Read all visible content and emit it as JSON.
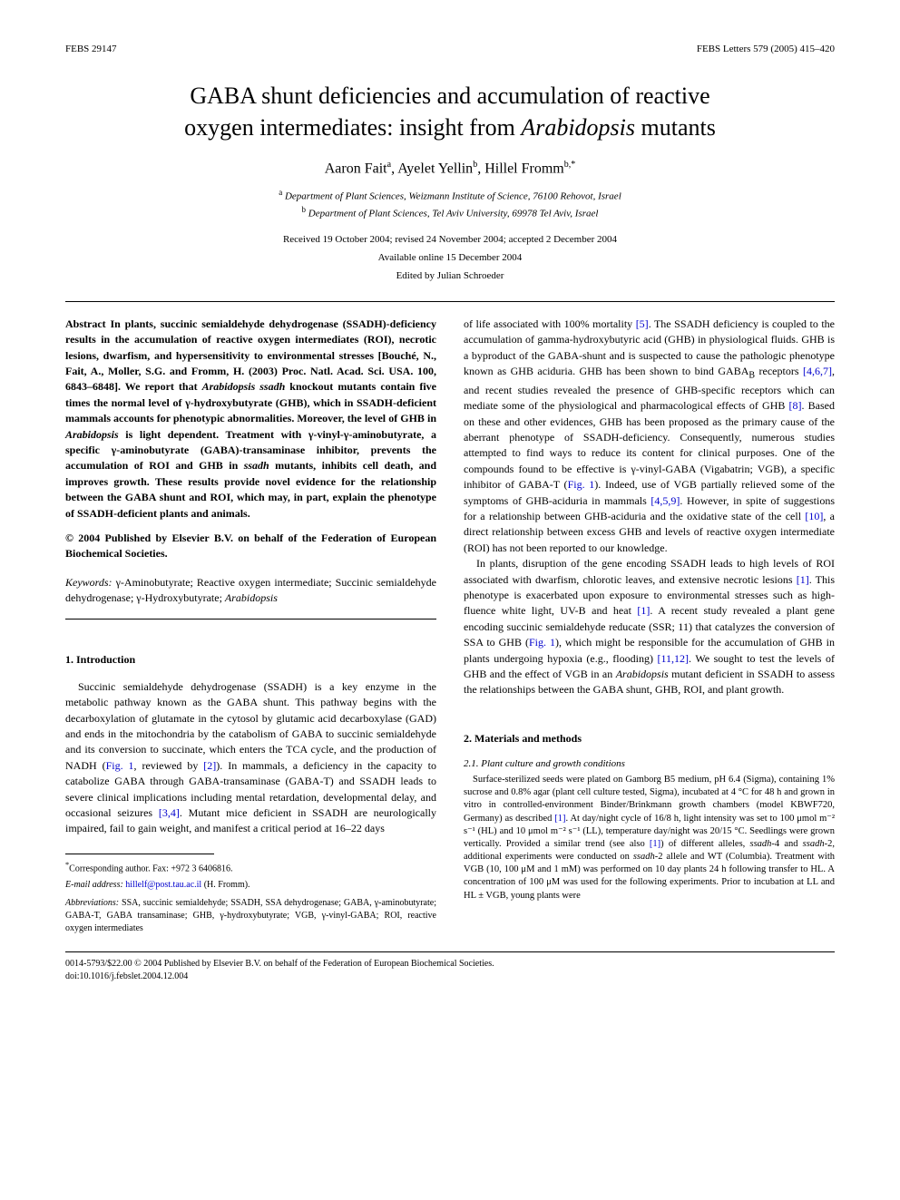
{
  "header": {
    "left": "FEBS 29147",
    "right": "FEBS Letters 579 (2005) 415–420"
  },
  "title_line1": "GABA shunt deficiencies and accumulation of reactive",
  "title_line2_a": "oxygen intermediates: insight from ",
  "title_line2_em": "Arabidopsis",
  "title_line2_b": " mutants",
  "authors": {
    "a1_name": "Aaron Fait",
    "a1_sup": "a",
    "a2_name": "Ayelet Yellin",
    "a2_sup": "b",
    "a3_name": "Hillel Fromm",
    "a3_sup": "b,*"
  },
  "affiliations": {
    "a_sup": "a",
    "a_text": " Department of Plant Sciences, Weizmann Institute of Science, 76100 Rehovot, Israel",
    "b_sup": "b",
    "b_text": " Department of Plant Sciences, Tel Aviv University, 69978 Tel Aviv, Israel"
  },
  "dates": "Received 19 October 2004; revised 24 November 2004; accepted 2 December 2004",
  "online": "Available online 15 December 2004",
  "editor": "Edited by Julian Schroeder",
  "abstract_label": "Abstract",
  "abstract_body": " In plants, succinic semialdehyde dehydrogenase (SSADH)-deficiency results in the accumulation of reactive oxygen intermediates (ROI), necrotic lesions, dwarfism, and hypersensitivity to environmental stresses [Bouché, N., Fait, A., Moller, S.G. and Fromm, H. (2003) Proc. Natl. Acad. Sci. USA. 100, 6843–6848]. We report that ",
  "abstract_em1": "Arabidopsis ssadh",
  "abstract_body2": " knockout mutants contain five times the normal level of γ-hydroxybutyrate (GHB), which in SSADH-deficient mammals accounts for phenotypic abnormalities. Moreover, the level of GHB in ",
  "abstract_em2": "Arabidopsis",
  "abstract_body3": " is light dependent. Treatment with γ-vinyl-γ-aminobutyrate, a specific γ-aminobutyrate (GABA)-transaminase inhibitor, prevents the accumulation of ROI and GHB in ",
  "abstract_em3": "ssadh",
  "abstract_body4": " mutants, inhibits cell death, and improves growth. These results provide novel evidence for the relationship between the GABA shunt and ROI, which may, in part, explain the phenotype of SSADH-deficient plants and animals.",
  "copyright": "© 2004 Published by Elsevier B.V. on behalf of the Federation of European Biochemical Societies.",
  "keywords_label": "Keywords:",
  "keywords_text_1": " γ-Aminobutyrate; Reactive oxygen intermediate; Succinic semialdehyde dehydrogenase; γ-Hydroxybutyrate; ",
  "keywords_em": "Arabidopsis",
  "section1_title": "1. Introduction",
  "intro_p1a": "Succinic semialdehyde dehydrogenase (SSADH) is a key enzyme in the metabolic pathway known as the GABA shunt. This pathway begins with the decarboxylation of glutamate in the cytosol by glutamic acid decarboxylase (GAD) and ends in the mitochondria by the catabolism of GABA to succinic semialdehyde and its conversion to succinate, which enters the TCA cycle, and the production of NADH (",
  "intro_p1_fig": "Fig. 1",
  "intro_p1b": ", reviewed by ",
  "intro_p1_ref2": "[2]",
  "intro_p1c": "). In mammals, a deficiency in the capacity to catabolize GABA through GABA-transaminase (GABA-T) and SSADH leads to severe clinical implications including mental retardation, developmental delay, and occasional seizures ",
  "intro_p1_ref34": "[3,4]",
  "intro_p1d": ". Mutant mice deficient in SSADH are neurologically impaired, fail to gain weight, and manifest a critical period at 16–22 days",
  "intro_p1e": "of life associated with 100% mortality ",
  "intro_p1_ref5": "[5]",
  "intro_p1f": ". The SSADH deficiency is coupled to the accumulation of gamma-hydroxybutyric acid (GHB) in physiological fluids. GHB is a byproduct of the GABA-shunt and is suspected to cause the pathologic phenotype known as GHB aciduria. GHB has been shown to bind GABA",
  "intro_p1_sub": "B",
  "intro_p1g": " receptors ",
  "intro_p1_ref467": "[4,6,7]",
  "intro_p1h": ", and recent studies revealed the presence of GHB-specific receptors which can mediate some of the physiological and pharmacological effects of GHB ",
  "intro_p1_ref8": "[8]",
  "intro_p1i": ". Based on these and other evidences, GHB has been proposed as the primary cause of the aberrant phenotype of SSADH-deficiency. Consequently, numerous studies attempted to find ways to reduce its content for clinical purposes. One of the compounds found to be effective is γ-vinyl-GABA (Vigabatrin; VGB), a specific inhibitor of GABA-T (",
  "intro_p1_fig1b": "Fig. 1",
  "intro_p1j": "). Indeed, use of VGB partially relieved some of the symptoms of GHB-aciduria in mammals ",
  "intro_p1_ref459": "[4,5,9]",
  "intro_p1k": ". However, in spite of suggestions for a relationship between GHB-aciduria and the oxidative state of the cell ",
  "intro_p1_ref10": "[10]",
  "intro_p1l": ", a direct relationship between excess GHB and levels of reactive oxygen intermediate (ROI) has not been reported to our knowledge.",
  "intro_p2a": "In plants, disruption of the gene encoding SSADH leads to high levels of ROI associated with dwarfism, chlorotic leaves, and extensive necrotic lesions ",
  "intro_p2_ref1": "[1]",
  "intro_p2b": ". This phenotype is exacerbated upon exposure to environmental stresses such as high-fluence white light, UV-B and heat ",
  "intro_p2_ref1b": "[1]",
  "intro_p2c": ". A recent study revealed a plant gene encoding succinic semialdehyde reducate (SSR; 11) that catalyzes the conversion of SSA to GHB (",
  "intro_p2_fig": "Fig. 1",
  "intro_p2d": "), which might be responsible for the accumulation of GHB in plants undergoing hypoxia (e.g., flooding) ",
  "intro_p2_ref1112": "[11,12]",
  "intro_p2e": ". We sought to test the levels of GHB and the effect of VGB in an ",
  "intro_p2_em": "Arabidopsis",
  "intro_p2f": " mutant deficient in SSADH to assess the relationships between the GABA shunt, GHB, ROI, and plant growth.",
  "section2_title": "2. Materials and methods",
  "section2_1_title": "2.1. Plant culture and growth conditions",
  "methods_p1a": "Surface-sterilized seeds were plated on Gamborg B5 medium, pH 6.4 (Sigma), containing 1% sucrose and 0.8% agar (plant cell culture tested, Sigma), incubated at 4 °C for 48 h and grown in vitro in controlled-environment Binder/Brinkmann growth chambers (model KBWF720, Germany) as described ",
  "methods_ref1": "[1]",
  "methods_p1b": ". At day/night cycle of 16/8 h, light intensity was set to 100 μmol m⁻² s⁻¹ (HL) and 10 μmol m⁻² s⁻¹ (LL), temperature day/night was 20/15 °C. Seedlings were grown vertically. Provided a similar trend (see also ",
  "methods_ref1b": "[1]",
  "methods_p1c": ") of different alleles, ",
  "methods_em1": "ssadh",
  "methods_p1d": "-4 and ",
  "methods_em2": "ssadh",
  "methods_p1e": "-2, additional experiments were conducted on ",
  "methods_em3": "ssadh",
  "methods_p1f": "-2 allele and WT (Columbia). Treatment with VGB (10, 100 μM and 1 mM) was performed on 10 day plants 24 h following transfer to HL. A concentration of 100 μM was used for the following experiments. Prior to incubation at LL and HL ± VGB, young plants were",
  "footnote_corr_label": "*",
  "footnote_corr": "Corresponding author. Fax: +972 3 6406816.",
  "footnote_email_label": "E-mail address:",
  "footnote_email": "hillelf@post.tau.ac.il",
  "footnote_email_person": " (H. Fromm).",
  "abbrev_label": "Abbreviations:",
  "abbrev_text": " SSA, succinic semialdehyde; SSADH, SSA dehydrogenase; GABA, γ-aminobutyrate; GABA-T, GABA transaminase; GHB, γ-hydroxybutyrate; VGB, γ-vinyl-GABA; ROI, reactive oxygen intermediates",
  "footer_line1": "0014-5793/$22.00 © 2004 Published by Elsevier B.V. on behalf of the Federation of European Biochemical Societies.",
  "footer_line2": "doi:10.1016/j.febslet.2004.12.004"
}
